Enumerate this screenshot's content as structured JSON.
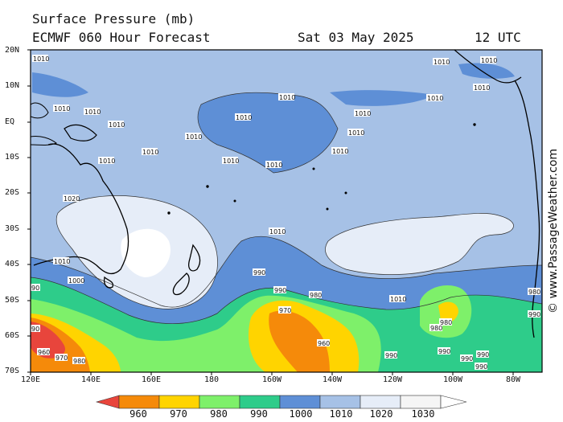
{
  "header": {
    "title": "Surface Pressure (mb)",
    "model": "ECMWF 060 Hour Forecast",
    "date": "Sat 03 May 2025",
    "utc": "12 UTC"
  },
  "credit": "© www.PassageWeather.com",
  "axes": {
    "y_labels": [
      "20N",
      "10N",
      "EQ",
      "10S",
      "20S",
      "30S",
      "40S",
      "50S",
      "60S",
      "70S"
    ],
    "x_labels": [
      "120E",
      "140E",
      "160E",
      "180",
      "160W",
      "140W",
      "120W",
      "100W",
      "80W"
    ]
  },
  "legend": {
    "values": [
      "960",
      "970",
      "980",
      "990",
      "1000",
      "1010",
      "1020",
      "1030"
    ],
    "colors": [
      "#e8453c",
      "#f58a0a",
      "#ffd400",
      "#7ef06a",
      "#2ecc8a",
      "#5e8fd6",
      "#a6c1e6",
      "#e6edf8",
      "#ffffff"
    ]
  },
  "colors": {
    "band_1010": "#a6c1e6",
    "band_1000": "#5e8fd6",
    "band_1020": "#e6edf8",
    "band_990": "#2ecc8a",
    "band_980": "#7ef06a",
    "band_970": "#ffd400",
    "band_960": "#f58a0a",
    "band_low": "#e8453c",
    "land": "#000000"
  },
  "isobar_labels": [
    {
      "id": "l1",
      "text": "1010"
    },
    {
      "id": "l2",
      "text": "1010"
    },
    {
      "id": "l3",
      "text": "1010"
    },
    {
      "id": "l4",
      "text": "1010"
    },
    {
      "id": "l5",
      "text": "1010"
    },
    {
      "id": "l6",
      "text": "1010"
    },
    {
      "id": "l7",
      "text": "1010"
    },
    {
      "id": "l8",
      "text": "1010"
    },
    {
      "id": "l9",
      "text": "1010"
    },
    {
      "id": "l10",
      "text": "1010"
    },
    {
      "id": "l11",
      "text": "1010"
    },
    {
      "id": "l12",
      "text": "1010"
    },
    {
      "id": "l13",
      "text": "1020"
    },
    {
      "id": "l14",
      "text": "1010"
    },
    {
      "id": "l15",
      "text": "1010"
    },
    {
      "id": "l16",
      "text": "1000"
    },
    {
      "id": "l17",
      "text": "990"
    },
    {
      "id": "l18",
      "text": "1010"
    },
    {
      "id": "l19",
      "text": "990"
    },
    {
      "id": "l20",
      "text": "980"
    },
    {
      "id": "l21",
      "text": "970"
    },
    {
      "id": "l22",
      "text": "960"
    },
    {
      "id": "l23",
      "text": "990"
    },
    {
      "id": "l24",
      "text": "980"
    },
    {
      "id": "l25",
      "text": "980"
    },
    {
      "id": "l26",
      "text": "990"
    },
    {
      "id": "l27",
      "text": "990"
    },
    {
      "id": "l28",
      "text": "990"
    },
    {
      "id": "l29",
      "text": "990"
    },
    {
      "id": "l30",
      "text": "960"
    },
    {
      "id": "l31",
      "text": "970"
    },
    {
      "id": "l32",
      "text": "980"
    },
    {
      "id": "l33",
      "text": "90"
    },
    {
      "id": "l34",
      "text": "90"
    },
    {
      "id": "l35",
      "text": "1010"
    },
    {
      "id": "l36",
      "text": "1010"
    },
    {
      "id": "l37",
      "text": "1010"
    },
    {
      "id": "l38",
      "text": "1010"
    },
    {
      "id": "l39",
      "text": "1010"
    },
    {
      "id": "l40",
      "text": "1010"
    },
    {
      "id": "l41",
      "text": "990"
    },
    {
      "id": "l42",
      "text": "980"
    }
  ]
}
